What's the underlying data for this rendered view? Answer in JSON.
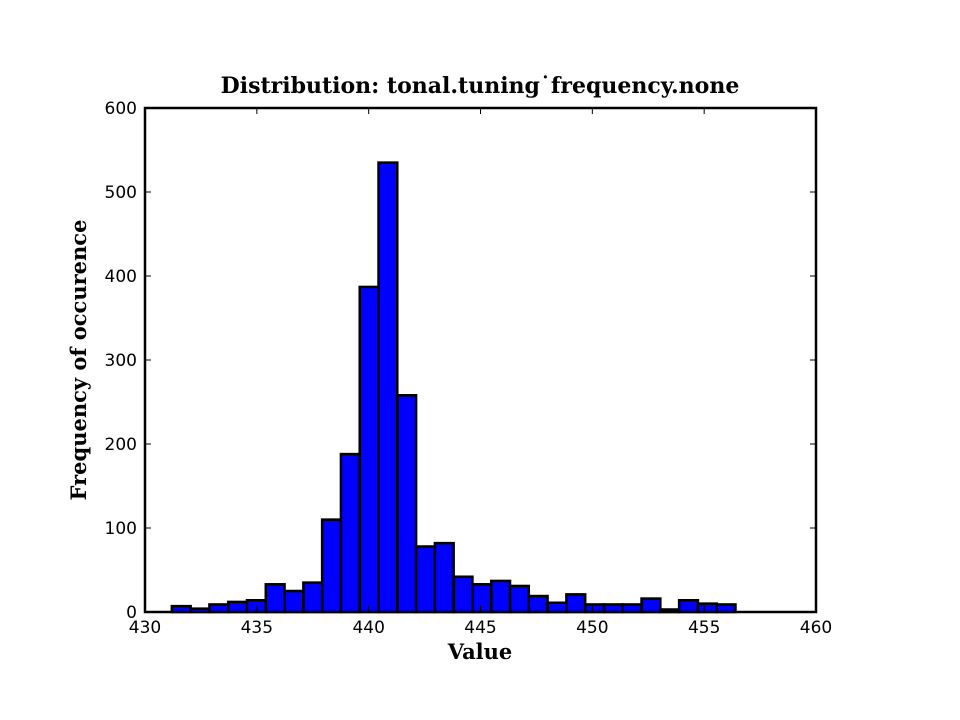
{
  "chart_data": {
    "type": "bar",
    "title": "Distribution: tonal.tuning˙frequency.none",
    "xlabel": "Value",
    "ylabel": "Frequency of occurence",
    "xlim": [
      430,
      460
    ],
    "ylim": [
      0,
      600
    ],
    "xticks": [
      430,
      435,
      440,
      445,
      450,
      455,
      460
    ],
    "yticks": [
      0,
      100,
      200,
      300,
      400,
      500,
      600
    ],
    "grid": false,
    "bar_color": "#0000ff",
    "edge_color": "#000000",
    "bins": [
      {
        "start": 431.2,
        "end": 432.04,
        "value": 7
      },
      {
        "start": 432.04,
        "end": 432.88,
        "value": 4
      },
      {
        "start": 432.88,
        "end": 433.72,
        "value": 9
      },
      {
        "start": 433.72,
        "end": 434.56,
        "value": 12
      },
      {
        "start": 434.56,
        "end": 435.4,
        "value": 14
      },
      {
        "start": 435.4,
        "end": 436.24,
        "value": 33
      },
      {
        "start": 436.24,
        "end": 437.08,
        "value": 25
      },
      {
        "start": 437.08,
        "end": 437.92,
        "value": 35
      },
      {
        "start": 437.92,
        "end": 438.76,
        "value": 110
      },
      {
        "start": 438.76,
        "end": 439.6,
        "value": 188
      },
      {
        "start": 439.6,
        "end": 440.44,
        "value": 387
      },
      {
        "start": 440.44,
        "end": 441.28,
        "value": 535
      },
      {
        "start": 441.28,
        "end": 442.12,
        "value": 258
      },
      {
        "start": 442.12,
        "end": 442.96,
        "value": 78
      },
      {
        "start": 442.96,
        "end": 443.8,
        "value": 82
      },
      {
        "start": 443.8,
        "end": 444.64,
        "value": 42
      },
      {
        "start": 444.64,
        "end": 445.48,
        "value": 33
      },
      {
        "start": 445.48,
        "end": 446.32,
        "value": 37
      },
      {
        "start": 446.32,
        "end": 447.16,
        "value": 31
      },
      {
        "start": 447.16,
        "end": 448.0,
        "value": 19
      },
      {
        "start": 448.0,
        "end": 448.84,
        "value": 11
      },
      {
        "start": 448.84,
        "end": 449.68,
        "value": 21
      },
      {
        "start": 449.68,
        "end": 450.52,
        "value": 9
      },
      {
        "start": 450.52,
        "end": 451.36,
        "value": 9
      },
      {
        "start": 451.36,
        "end": 452.2,
        "value": 9
      },
      {
        "start": 452.2,
        "end": 453.04,
        "value": 16
      },
      {
        "start": 453.04,
        "end": 453.88,
        "value": 3
      },
      {
        "start": 453.88,
        "end": 454.72,
        "value": 14
      },
      {
        "start": 454.72,
        "end": 455.56,
        "value": 10
      },
      {
        "start": 455.56,
        "end": 456.4,
        "value": 9
      }
    ]
  }
}
